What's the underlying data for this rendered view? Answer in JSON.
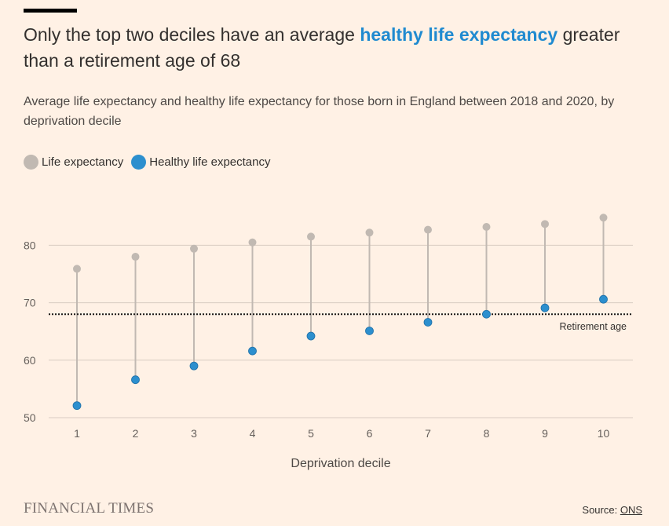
{
  "headline": {
    "before": "Only the top two deciles have an average",
    "highlight": "healthy life expectancy",
    "after": "greater than a retirement age of 68"
  },
  "subtitle": "Average life expectancy and healthy life expectancy for those born in England between 2018 and 2020, by deprivation decile",
  "legend": {
    "life": "Life expectancy",
    "healthy": "Healthy life expectancy"
  },
  "colors": {
    "background": "#fff1e5",
    "life": "#c1b9b2",
    "healthy": "#2c8fce",
    "highlight": "#1f8ad0",
    "grid": "#d8ccc2"
  },
  "chart_data": {
    "type": "scatter",
    "title": "Only the top two deciles have an average healthy life expectancy greater than a retirement age of 68",
    "xlabel": "Deprivation decile",
    "ylabel": "",
    "categories": [
      "1",
      "2",
      "3",
      "4",
      "5",
      "6",
      "7",
      "8",
      "9",
      "10"
    ],
    "series": [
      {
        "name": "Life expectancy",
        "values": [
          75.9,
          78.0,
          79.4,
          80.5,
          81.5,
          82.2,
          82.7,
          83.2,
          83.7,
          84.8
        ]
      },
      {
        "name": "Healthy life expectancy",
        "values": [
          52.1,
          56.6,
          59.0,
          61.6,
          64.2,
          65.1,
          66.6,
          68.0,
          69.1,
          70.6
        ]
      }
    ],
    "yticks": [
      "50",
      "60",
      "70",
      "80"
    ],
    "ylim": [
      50,
      90
    ],
    "reference_line": {
      "value": 68,
      "label": "Retirement age"
    },
    "grid": true,
    "legend_position": "top-left"
  },
  "footer": {
    "brand": "FINANCIAL TIMES",
    "source_prefix": "Source: ",
    "source_link": "ONS"
  }
}
